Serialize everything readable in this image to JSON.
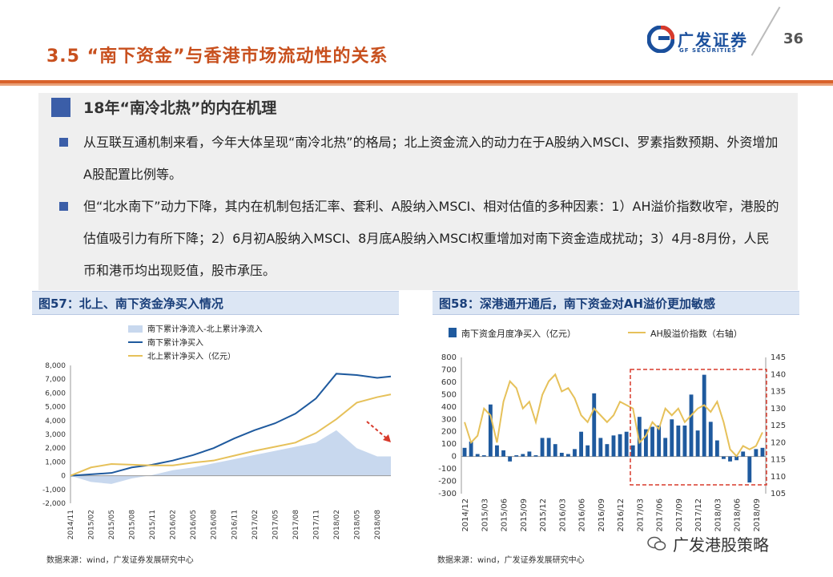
{
  "header": {
    "title": "3.5 “南下资金”与香港市场流动性的关系",
    "logo_cn": "广发证券",
    "logo_en": "GF SECURITIES",
    "page_number": "36"
  },
  "section": {
    "title": "18年“南冷北热”的内在机理",
    "bullets": [
      "从互联互通机制来看，今年大体呈现“南冷北热”的格局；北上资金流入的动力在于A股纳入MSCI、罗素指数预期、外资增加A股配置比例等。",
      "但“北水南下”动力下降，其内在机制包括汇率、套利、A股纳入MSCI、相对估值的多种因素：1）AH溢价指数收窄，港股的估值吸引力有所下降；2）6月初A股纳入MSCI、8月底A股纳入MSCI权重增加对南下资金造成扰动；3）4月-8月份，人民币和港币均出现贬值，股市承压。"
    ]
  },
  "figures": {
    "fig57_title": "图57：北上、南下资金净买入情况",
    "fig58_title": "图58：深港通开通后，南下资金对AH溢价更加敏感",
    "source1": "数据来源：wind，广发证券发展研究中心",
    "source2": "数据来源：wind，广发证券发展研究中心"
  },
  "watermark": "广发港股策略",
  "colors": {
    "accent": "#c8501e",
    "navy": "#1a4f9c",
    "series_blue": "#1f5a9e",
    "series_gold": "#e6c15a",
    "area": "#c8d8ee",
    "red_dash": "#d83a2b"
  },
  "chart_data": [
    {
      "type": "area",
      "title": "",
      "x_ticks": [
        "2014/11",
        "2015/02",
        "2015/05",
        "2015/08",
        "2015/11",
        "2016/02",
        "2016/05",
        "2016/08",
        "2016/11",
        "2017/02",
        "2017/05",
        "2017/08",
        "2017/11",
        "2018/02",
        "2018/05",
        "2018/08"
      ],
      "yticks": [
        "8,000",
        "7,000",
        "6,000",
        "5,000",
        "4,000",
        "3,000",
        "2,000",
        "1,000",
        "0",
        "-1,000",
        "-2,000"
      ],
      "ylim": [
        -2000,
        8000
      ],
      "legend_position": "top-center",
      "series": [
        {
          "name": "南下累计净流入-北上累计净流入",
          "type": "area",
          "x": [
            "2014/11",
            "2015/02",
            "2015/05",
            "2015/08",
            "2015/11",
            "2016/02",
            "2016/05",
            "2016/08",
            "2016/11",
            "2017/02",
            "2017/05",
            "2017/08",
            "2017/11",
            "2018/02",
            "2018/05",
            "2018/08",
            "2018/10"
          ],
          "values": [
            0,
            -450,
            -600,
            -200,
            50,
            400,
            600,
            900,
            1200,
            1500,
            1800,
            2100,
            2400,
            3300,
            2000,
            1400,
            1400
          ]
        },
        {
          "name": "南下累计净买入",
          "type": "line",
          "x": [
            "2014/11",
            "2015/02",
            "2015/05",
            "2015/08",
            "2015/11",
            "2016/02",
            "2016/05",
            "2016/08",
            "2016/11",
            "2017/02",
            "2017/05",
            "2017/08",
            "2017/11",
            "2018/02",
            "2018/05",
            "2018/08",
            "2018/10"
          ],
          "values": [
            0,
            100,
            200,
            600,
            800,
            1100,
            1500,
            2000,
            2700,
            3300,
            3800,
            4500,
            5600,
            7400,
            7300,
            7100,
            7200
          ]
        },
        {
          "name": "北上累计净买入（亿元）",
          "type": "line",
          "x": [
            "2014/11",
            "2015/02",
            "2015/05",
            "2015/08",
            "2015/11",
            "2016/02",
            "2016/05",
            "2016/08",
            "2016/11",
            "2017/02",
            "2017/05",
            "2017/08",
            "2017/11",
            "2018/02",
            "2018/05",
            "2018/08",
            "2018/10"
          ],
          "values": [
            0,
            600,
            850,
            800,
            750,
            750,
            950,
            1100,
            1450,
            1800,
            2100,
            2400,
            3100,
            4100,
            5300,
            5700,
            5900
          ]
        }
      ]
    },
    {
      "type": "bar",
      "title": "",
      "x_ticks": [
        "2014/12",
        "2015/03",
        "2015/06",
        "2015/09",
        "2015/12",
        "2016/03",
        "2016/06",
        "2016/09",
        "2016/12",
        "2017/03",
        "2017/06",
        "2017/09",
        "2017/12",
        "2018/03",
        "2018/06",
        "2018/09"
      ],
      "yticks_left": [
        "800",
        "700",
        "600",
        "500",
        "400",
        "300",
        "200",
        "100",
        "0",
        "-100",
        "-200",
        "-300"
      ],
      "yticks_right": [
        "145",
        "140",
        "135",
        "130",
        "125",
        "120",
        "115",
        "110",
        "105"
      ],
      "ylim_left": [
        -300,
        800
      ],
      "ylim_right": [
        105,
        145
      ],
      "legend_position": "top",
      "series": [
        {
          "name": "南下资金月度净买入（亿元）",
          "type": "bar",
          "x": [
            "2014/12",
            "2015/01",
            "2015/02",
            "2015/03",
            "2015/04",
            "2015/05",
            "2015/06",
            "2015/07",
            "2015/08",
            "2015/09",
            "2015/10",
            "2015/11",
            "2015/12",
            "2016/01",
            "2016/02",
            "2016/03",
            "2016/04",
            "2016/05",
            "2016/06",
            "2016/07",
            "2016/08",
            "2016/09",
            "2016/10",
            "2016/11",
            "2016/12",
            "2017/01",
            "2017/02",
            "2017/03",
            "2017/04",
            "2017/05",
            "2017/06",
            "2017/07",
            "2017/08",
            "2017/09",
            "2017/10",
            "2017/11",
            "2017/12",
            "2018/01",
            "2018/02",
            "2018/03",
            "2018/04",
            "2018/05",
            "2018/06",
            "2018/07",
            "2018/08",
            "2018/09",
            "2018/10"
          ],
          "values": [
            70,
            120,
            20,
            10,
            420,
            90,
            50,
            -40,
            10,
            20,
            40,
            10,
            150,
            150,
            100,
            30,
            20,
            60,
            200,
            90,
            510,
            150,
            100,
            170,
            180,
            200,
            90,
            320,
            220,
            240,
            250,
            150,
            300,
            250,
            250,
            500,
            210,
            660,
            280,
            130,
            -20,
            -40,
            -30,
            40,
            -210,
            60,
            70
          ]
        },
        {
          "name": "AH股溢价指数（右轴）",
          "type": "line",
          "axis": "right",
          "x": [
            "2014/12",
            "2015/01",
            "2015/02",
            "2015/03",
            "2015/04",
            "2015/05",
            "2015/06",
            "2015/07",
            "2015/08",
            "2015/09",
            "2015/10",
            "2015/11",
            "2015/12",
            "2016/01",
            "2016/02",
            "2016/03",
            "2016/04",
            "2016/05",
            "2016/06",
            "2016/07",
            "2016/08",
            "2016/09",
            "2016/10",
            "2016/11",
            "2016/12",
            "2017/01",
            "2017/02",
            "2017/03",
            "2017/04",
            "2017/05",
            "2017/06",
            "2017/07",
            "2017/08",
            "2017/09",
            "2017/10",
            "2017/11",
            "2017/12",
            "2018/01",
            "2018/02",
            "2018/03",
            "2018/04",
            "2018/05",
            "2018/06",
            "2018/07",
            "2018/08",
            "2018/09",
            "2018/10"
          ],
          "values": [
            126,
            120,
            122,
            130,
            128,
            120,
            132,
            138,
            136,
            130,
            132,
            126,
            134,
            138,
            140,
            135,
            136,
            133,
            128,
            126,
            130,
            128,
            126,
            128,
            132,
            131,
            130,
            120,
            122,
            126,
            124,
            130,
            128,
            130,
            126,
            128,
            130,
            131,
            129,
            132,
            126,
            118,
            116,
            119,
            118,
            119,
            123
          ]
        }
      ]
    }
  ]
}
